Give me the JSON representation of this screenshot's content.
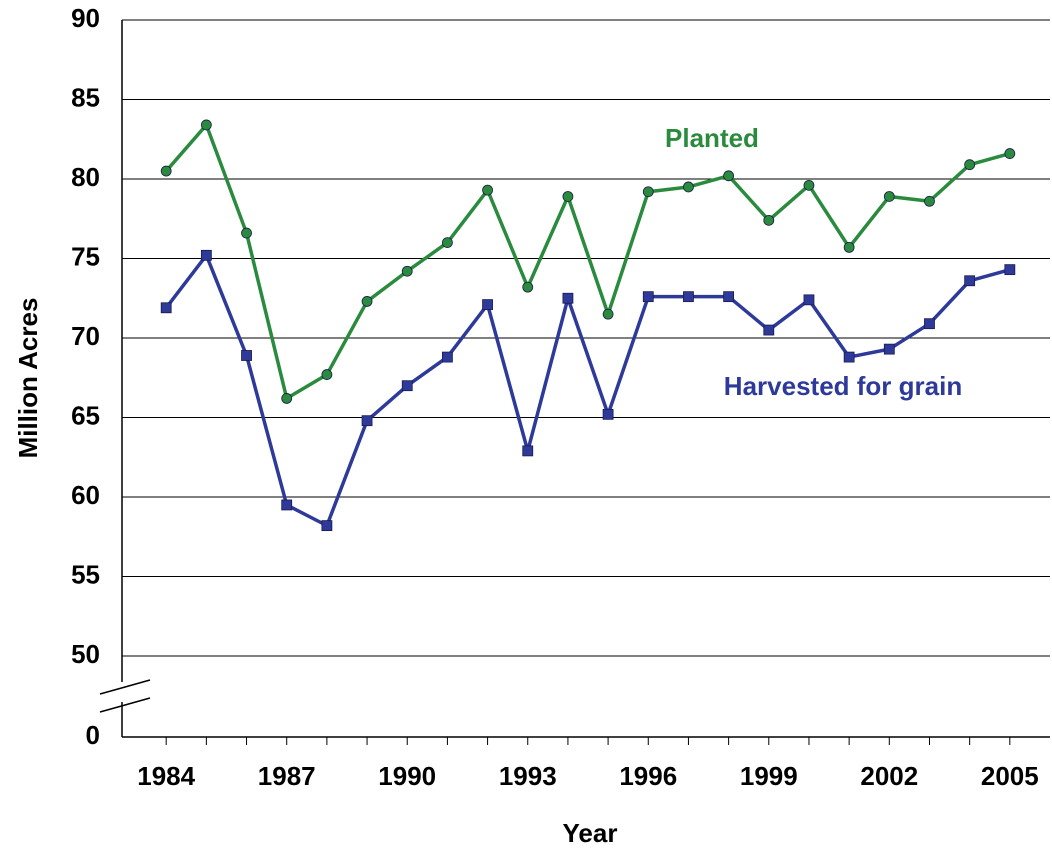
{
  "chart_data": {
    "type": "line",
    "x_label": "Year",
    "y_label": "Million Acres",
    "x": [
      1984,
      1985,
      1986,
      1987,
      1988,
      1989,
      1990,
      1991,
      1992,
      1993,
      1994,
      1995,
      1996,
      1997,
      1998,
      1999,
      2000,
      2001,
      2002,
      2003,
      2004,
      2005
    ],
    "series": [
      {
        "name": "Planted",
        "color": "#2a8b3e",
        "marker": "circle",
        "values": [
          80.5,
          83.4,
          76.6,
          66.2,
          67.7,
          72.3,
          74.2,
          76.0,
          79.3,
          73.2,
          78.9,
          71.5,
          79.2,
          79.5,
          80.2,
          77.4,
          79.6,
          75.7,
          78.9,
          78.6,
          80.9,
          81.6
        ]
      },
      {
        "name": "Harvested for grain",
        "color": "#2e3a9a",
        "marker": "square",
        "values": [
          71.9,
          75.2,
          68.9,
          59.5,
          58.2,
          64.8,
          67.0,
          68.8,
          72.1,
          62.9,
          72.5,
          65.2,
          72.6,
          72.6,
          72.6,
          70.5,
          72.4,
          68.8,
          69.3,
          70.9,
          73.6,
          74.3
        ]
      }
    ],
    "xlim": [
      1982.9,
      2006
    ],
    "xticks": [
      1984,
      1987,
      1990,
      1993,
      1996,
      1999,
      2002,
      2005
    ],
    "ylim": [
      0,
      90
    ],
    "yticks": [
      0,
      50,
      55,
      60,
      65,
      70,
      75,
      80,
      85,
      90
    ],
    "axis_break": true,
    "grid": true
  }
}
